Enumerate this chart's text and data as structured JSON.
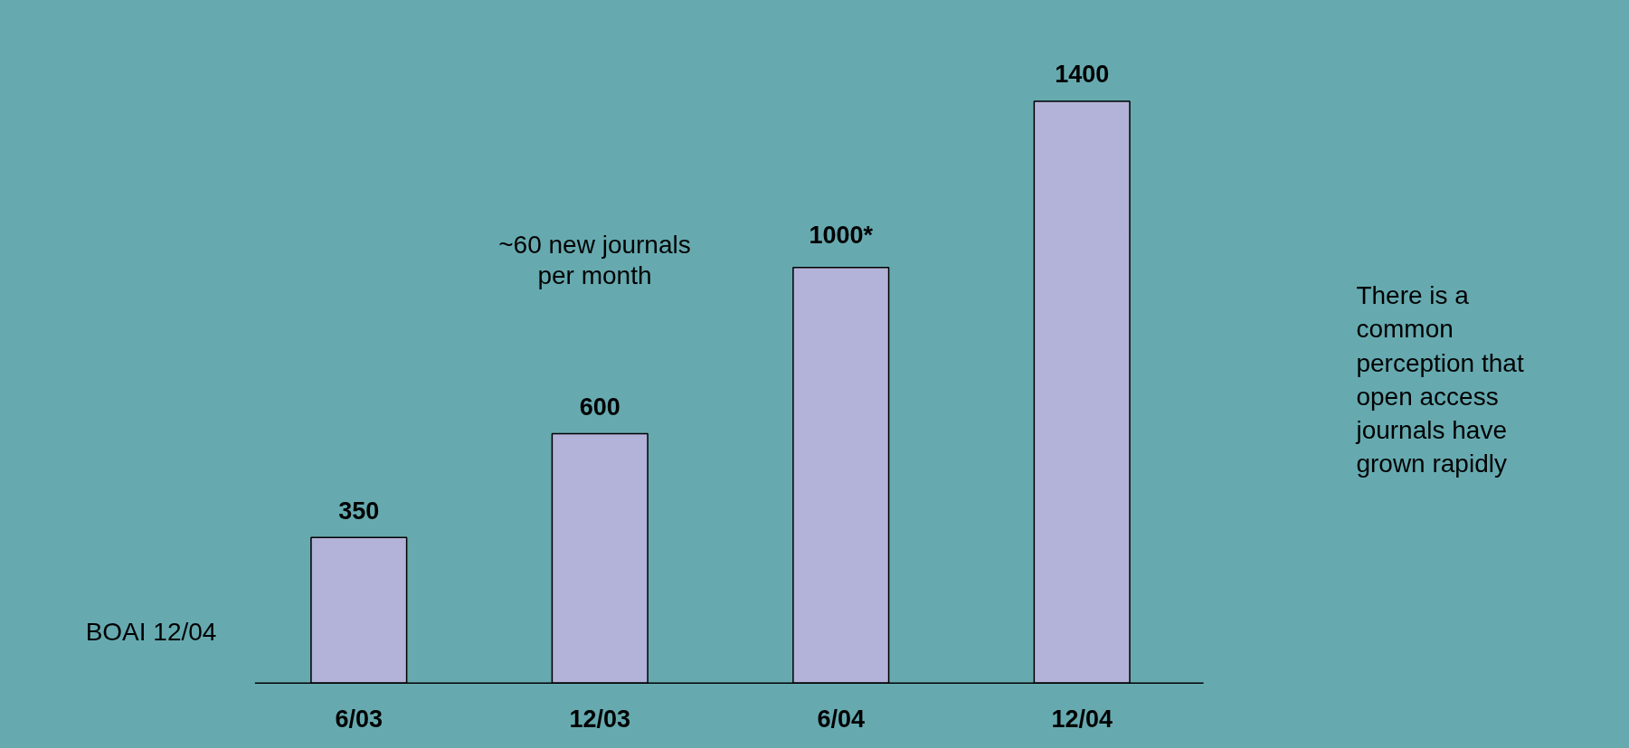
{
  "chart_data": {
    "type": "bar",
    "categories": [
      "6/03",
      "12/03",
      "6/04",
      "12/04"
    ],
    "values": [
      350,
      600,
      1000,
      1400
    ],
    "value_labels": [
      "350",
      "600",
      "1000*",
      "1400"
    ],
    "color": "#b3b3d9",
    "annotations": [
      "~60 new journals per month",
      "BOAI 12/04",
      "There is a common perception that open access journals have grown rapidly"
    ]
  }
}
